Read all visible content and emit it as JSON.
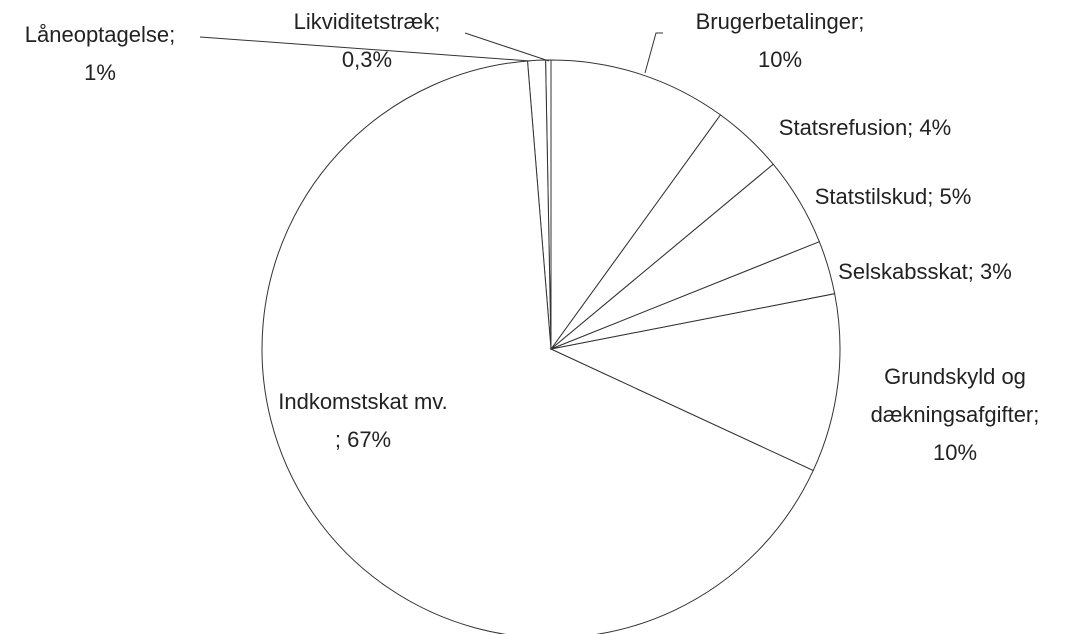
{
  "chart_data": {
    "type": "pie",
    "categories": [
      "Brugerbetalinger;",
      "Statsrefusion;",
      "Statstilskud;",
      "Selskabsskat;",
      "Grundskyld og dækningsafgifter;",
      "Indkomstskat mv.",
      "Låneoptagelse;",
      "Likviditetstræk;"
    ],
    "values": [
      10,
      4,
      5,
      3,
      10,
      67,
      1,
      0.3
    ],
    "value_labels": [
      "10%",
      "4%",
      "5%",
      "3%",
      "10%",
      "; 67%",
      "1%",
      "0,3%"
    ],
    "color": "#ffffff"
  }
}
